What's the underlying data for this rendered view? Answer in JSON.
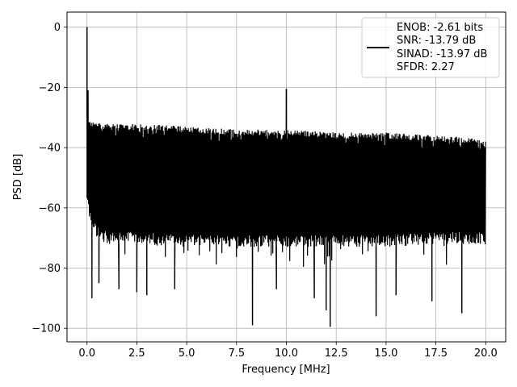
{
  "chart_data": {
    "type": "line",
    "xlabel": "Frequency [MHz]",
    "ylabel": "PSD [dB]",
    "xlim": [
      -1,
      21
    ],
    "ylim": [
      -104.5,
      5
    ],
    "xticks": [
      0.0,
      2.5,
      5.0,
      7.5,
      10.0,
      12.5,
      15.0,
      17.5,
      20.0
    ],
    "xtick_labels": [
      "0.0",
      "2.5",
      "5.0",
      "7.5",
      "10.0",
      "12.5",
      "15.0",
      "17.5",
      "20.0"
    ],
    "yticks": [
      0,
      -20,
      -40,
      -60,
      -80,
      -100
    ],
    "ytick_labels": [
      "0",
      "−20",
      "−40",
      "−60",
      "−80",
      "−100"
    ],
    "grid": true,
    "legend_position": "top-right",
    "legend": {
      "lines": [
        "ENOB: -2.61 bits",
        "SNR: -13.79 dB",
        "SINAD: -13.97 dB",
        "SFDR: 2.27"
      ]
    },
    "series_color": "#000000",
    "series": [
      {
        "envelope_x": [
          0.0,
          0.1,
          0.2,
          0.5,
          1.0,
          2.5,
          5.0,
          7.5,
          10.0,
          12.5,
          15.0,
          17.5,
          20.0
        ],
        "envelope_upper": [
          -30,
          -31,
          -31,
          -32,
          -32,
          -32,
          -33,
          -34,
          -34,
          -35,
          -35,
          -36,
          -37
        ],
        "envelope_lower": [
          -58,
          -63,
          -66,
          -70,
          -72,
          -72,
          -73,
          -73,
          -73,
          -73,
          -73,
          -72,
          -72
        ],
        "peaks": [
          {
            "x": 0.0,
            "y": 0
          },
          {
            "x": 0.05,
            "y": -21
          },
          {
            "x": 10.0,
            "y": -20.5
          }
        ],
        "dips": [
          {
            "x": 0.25,
            "y": -90
          },
          {
            "x": 0.6,
            "y": -85
          },
          {
            "x": 1.6,
            "y": -87
          },
          {
            "x": 2.5,
            "y": -88
          },
          {
            "x": 3.0,
            "y": -89
          },
          {
            "x": 4.4,
            "y": -87
          },
          {
            "x": 8.3,
            "y": -99
          },
          {
            "x": 9.5,
            "y": -87
          },
          {
            "x": 11.4,
            "y": -90
          },
          {
            "x": 12.0,
            "y": -94
          },
          {
            "x": 12.2,
            "y": -99.5
          },
          {
            "x": 14.5,
            "y": -96
          },
          {
            "x": 15.5,
            "y": -89
          },
          {
            "x": 17.3,
            "y": -91
          },
          {
            "x": 18.8,
            "y": -95
          }
        ],
        "end_x": 20.0
      }
    ]
  }
}
